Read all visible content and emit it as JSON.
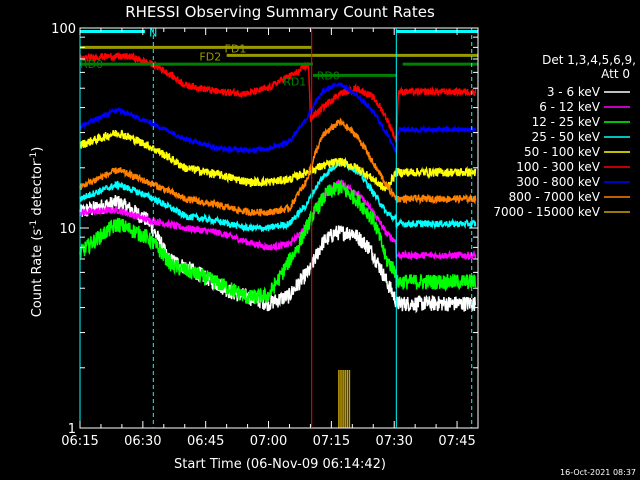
{
  "page": {
    "footer_timestamp": "16-Oct-2021 08:37"
  },
  "chart_data": {
    "type": "line",
    "title": "RHESSI Observing Summary Count Rates",
    "xlabel": "Start Time (06-Nov-09 06:14:42)",
    "ylabel_main": "Count Rate (s",
    "ylabel_sup1": "-1",
    "ylabel_mid": " detector",
    "ylabel_sup2": "-1",
    "ylabel_end": ")",
    "y_scale": "log",
    "ylim": [
      1,
      100
    ],
    "xlim_minutes": [
      0,
      95
    ],
    "x_ticks": [
      {
        "m": 0,
        "label": "06:15"
      },
      {
        "m": 15,
        "label": "06:30"
      },
      {
        "m": 30,
        "label": "06:45"
      },
      {
        "m": 45,
        "label": "07:00"
      },
      {
        "m": 60,
        "label": "07:15"
      },
      {
        "m": 75,
        "label": "07:30"
      },
      {
        "m": 90,
        "label": "07:45"
      }
    ],
    "y_ticks": [
      {
        "v": 1,
        "label": "1"
      },
      {
        "v": 10,
        "label": "10"
      },
      {
        "v": 100,
        "label": "100"
      }
    ],
    "legend_header": [
      "Det 1,3,4,5,6,9,",
      "Att 0"
    ],
    "series": [
      {
        "name": "3 - 6 keV",
        "color": "#ffffff",
        "noise": 0.09,
        "tail": 4.2,
        "points": [
          [
            0,
            12
          ],
          [
            9,
            13.5
          ],
          [
            16,
            11
          ],
          [
            21,
            7
          ],
          [
            36,
            4.8
          ],
          [
            45,
            4.2
          ],
          [
            50,
            4.6
          ],
          [
            55,
            6.2
          ],
          [
            58,
            8.5
          ],
          [
            61,
            9.5
          ],
          [
            65,
            9.5
          ],
          [
            69,
            8
          ],
          [
            73,
            5.5
          ],
          [
            75.5,
            4.3
          ]
        ]
      },
      {
        "name": "6 - 12 keV",
        "color": "#ff00ff",
        "noise": 0.04,
        "tail": 7.3,
        "points": [
          [
            0,
            12
          ],
          [
            9,
            12.3
          ],
          [
            16,
            11
          ],
          [
            25,
            10
          ],
          [
            33,
            9.5
          ],
          [
            40,
            8.5
          ],
          [
            45,
            8
          ],
          [
            50,
            8.3
          ],
          [
            54,
            10
          ],
          [
            58,
            14.5
          ],
          [
            62,
            17
          ],
          [
            66,
            15
          ],
          [
            70,
            12
          ],
          [
            73,
            9.5
          ],
          [
            75.5,
            8.5
          ]
        ]
      },
      {
        "name": "12 - 25 keV",
        "color": "#00ff00",
        "noise": 0.09,
        "tail": 5.4,
        "points": [
          [
            0,
            7.5
          ],
          [
            9,
            10.5
          ],
          [
            16,
            9
          ],
          [
            22,
            6.5
          ],
          [
            34,
            5.2
          ],
          [
            40,
            4.5
          ],
          [
            45,
            4.6
          ],
          [
            48,
            5.8
          ],
          [
            52,
            8
          ],
          [
            55,
            11
          ],
          [
            59,
            15
          ],
          [
            62,
            16
          ],
          [
            66,
            14
          ],
          [
            70,
            11
          ],
          [
            73,
            7
          ],
          [
            75.5,
            6
          ]
        ]
      },
      {
        "name": "25 - 50 keV",
        "color": "#00ffff",
        "noise": 0.04,
        "tail": 10.5,
        "points": [
          [
            0,
            14
          ],
          [
            9,
            16.5
          ],
          [
            16,
            14.5
          ],
          [
            25,
            11.5
          ],
          [
            33,
            10.8
          ],
          [
            40,
            10
          ],
          [
            45,
            10
          ],
          [
            50,
            10.5
          ],
          [
            54,
            13
          ],
          [
            58,
            18
          ],
          [
            62,
            21.5
          ],
          [
            66,
            19.5
          ],
          [
            70,
            15
          ],
          [
            73,
            12
          ],
          [
            75.5,
            11
          ]
        ]
      },
      {
        "name": "50 - 100 keV",
        "color": "#ffff00",
        "noise": 0.05,
        "tail": 19,
        "points": [
          [
            0,
            26
          ],
          [
            9,
            30
          ],
          [
            16,
            26
          ],
          [
            25,
            20
          ],
          [
            33,
            18.5
          ],
          [
            40,
            17
          ],
          [
            45,
            17
          ],
          [
            50,
            17.5
          ],
          [
            54,
            19
          ],
          [
            58,
            20.5
          ],
          [
            62,
            21.5
          ],
          [
            66,
            20
          ],
          [
            70,
            17.5
          ],
          [
            73,
            15.5
          ],
          [
            75.5,
            19
          ]
        ]
      },
      {
        "name": "100 - 300 keV",
        "color": "#ff0000",
        "noise": 0.04,
        "tail": 48,
        "points": [
          [
            0,
            70
          ],
          [
            5,
            72
          ],
          [
            12,
            72
          ],
          [
            18,
            65
          ],
          [
            25,
            52
          ],
          [
            33,
            48
          ],
          [
            40,
            47
          ],
          [
            45,
            50
          ],
          [
            48,
            55
          ],
          [
            52,
            60
          ],
          [
            54.5,
            66
          ],
          [
            55,
            35
          ],
          [
            58,
            40
          ],
          [
            62,
            47
          ],
          [
            66,
            50
          ],
          [
            70,
            45
          ],
          [
            73,
            36
          ],
          [
            75.5,
            27
          ],
          [
            76,
            48
          ]
        ]
      },
      {
        "name": "300 - 800 keV",
        "color": "#0000ff",
        "noise": 0.03,
        "tail": 31,
        "points": [
          [
            0,
            32
          ],
          [
            9,
            39
          ],
          [
            16,
            34
          ],
          [
            25,
            28
          ],
          [
            33,
            25
          ],
          [
            40,
            24.5
          ],
          [
            45,
            25
          ],
          [
            50,
            27
          ],
          [
            54,
            35
          ],
          [
            58,
            48
          ],
          [
            62,
            53
          ],
          [
            66,
            46
          ],
          [
            70,
            38
          ],
          [
            73,
            30
          ],
          [
            75.5,
            24
          ],
          [
            76,
            31
          ]
        ]
      },
      {
        "name": "800 - 7000 keV",
        "color": "#ff7f00",
        "noise": 0.04,
        "tail": 14,
        "points": [
          [
            0,
            16
          ],
          [
            9,
            19.5
          ],
          [
            16,
            17
          ],
          [
            25,
            14
          ],
          [
            33,
            13
          ],
          [
            40,
            12
          ],
          [
            45,
            12
          ],
          [
            50,
            12.5
          ],
          [
            54,
            17
          ],
          [
            58,
            29
          ],
          [
            62,
            34
          ],
          [
            66,
            29
          ],
          [
            70,
            21
          ],
          [
            73,
            16.5
          ],
          [
            75.5,
            14
          ]
        ]
      },
      {
        "name": "7000 - 15000 keV",
        "color": "#c8a400",
        "noise": 0,
        "tail": 0,
        "points": []
      }
    ],
    "spikes_7000_15000_minutes": [
      61.8,
      62.3,
      62.8,
      63.3,
      63.8,
      64.3
    ],
    "interval_bars": [
      {
        "label": "N",
        "color": "#00ffff",
        "y": 96,
        "from": 0,
        "to": 15.5,
        "label_at": 16.5
      },
      {
        "label": "",
        "color": "#00ffff",
        "y": 96,
        "from": 75.5,
        "to": 95,
        "label_at": 0
      },
      {
        "label": "FD1",
        "color": "#999900",
        "y": 80,
        "from": 0,
        "to": 55.3,
        "label_at": 34.5
      },
      {
        "label": "FD2",
        "color": "#999900",
        "y": 73,
        "from": 35,
        "to": 95,
        "label_at": 28.5
      },
      {
        "label": "RD0",
        "color": "#008000",
        "y": 66,
        "from": 0,
        "to": 55.6,
        "label_at": 0
      },
      {
        "label": "RD0",
        "color": "#008000",
        "y": 58,
        "from": 55.6,
        "to": 75.5,
        "label_at": 56.5
      },
      {
        "label": "",
        "color": "#008000",
        "y": 66,
        "from": 77,
        "to": 95,
        "label_at": 0
      },
      {
        "label": "RD1",
        "color": "#008000",
        "y": 0,
        "from": 0,
        "to": 0,
        "label_at": 48.5
      }
    ],
    "vertical_lines": [
      {
        "m": 0,
        "style": "solid",
        "color": "#00ffff"
      },
      {
        "m": 17.5,
        "style": "dashed",
        "color": "#00ffff"
      },
      {
        "m": 75.5,
        "style": "solid",
        "color": "#00ffff"
      },
      {
        "m": 93.5,
        "style": "dashed",
        "color": "#00ffff"
      },
      {
        "m": 55.3,
        "style": "solid",
        "color": "#ff0000"
      }
    ]
  }
}
